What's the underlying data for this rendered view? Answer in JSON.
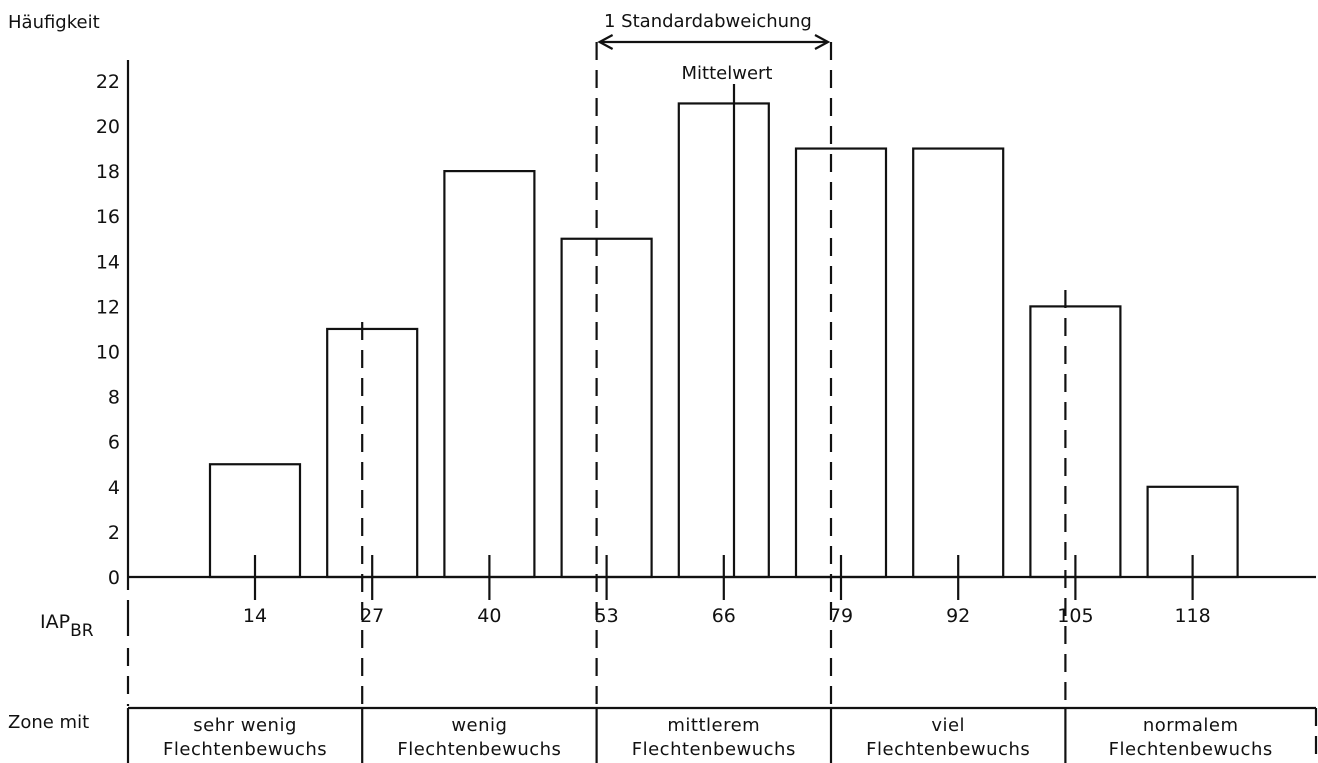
{
  "chart_data": {
    "type": "bar",
    "ylabel": "Häufigkeit",
    "xlabel": "IAP",
    "xlabel_sub": "BR",
    "x_ticks": [
      "14",
      "27",
      "40",
      "53",
      "66",
      "79",
      "92",
      "105",
      "118"
    ],
    "ylim": [
      0,
      22
    ],
    "y_ticks": [
      0,
      2,
      4,
      6,
      8,
      10,
      12,
      14,
      16,
      18,
      20,
      22
    ],
    "categories": [
      14,
      27,
      40,
      53,
      66,
      79,
      92,
      105,
      118
    ],
    "values": [
      5,
      11,
      18,
      15,
      21,
      19,
      19,
      12,
      4
    ],
    "annotations": {
      "std_label": "1 Standardabweichung",
      "mean_label": "Mittelwert"
    },
    "zones_title": "Zone mit",
    "zones": [
      {
        "line1": "sehr wenig",
        "line2": "Flechtenbewuchs"
      },
      {
        "line1": "wenig",
        "line2": "Flechtenbewuchs"
      },
      {
        "line1": "mittlerem",
        "line2": "Flechtenbewuchs"
      },
      {
        "line1": "viel",
        "line2": "Flechtenbewuchs"
      },
      {
        "line1": "normalem",
        "line2": "Flechtenbewuchs"
      }
    ],
    "grid": false,
    "legend": "none"
  }
}
